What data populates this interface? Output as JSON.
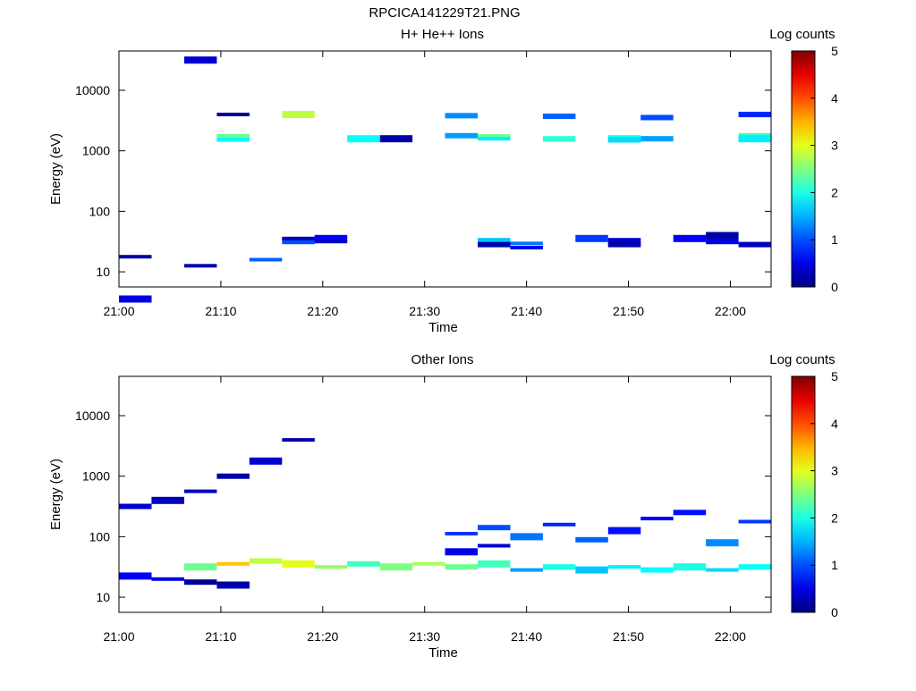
{
  "page": {
    "title": "RPCICA141229T21.PNG"
  },
  "chart_data": [
    {
      "type": "heatmap",
      "title": "H+ He++ Ions",
      "xlabel": "Time",
      "ylabel": "Energy (eV)",
      "colorbar_label": "Log counts",
      "colorbar_ticks": [
        "0",
        "1",
        "2",
        "3",
        "4",
        "5"
      ],
      "xlim_minutes": [
        0,
        64
      ],
      "x_ticks": [
        "21:00",
        "21:10",
        "21:20",
        "21:30",
        "21:40",
        "21:50",
        "22:00"
      ],
      "ylim_log10": [
        0.75,
        4.65
      ],
      "y_ticks": [
        "10",
        "100",
        "1000",
        "10000"
      ],
      "y_tick_values": [
        10,
        100,
        1000,
        10000
      ],
      "time_columns": [
        "21:00",
        "21:03",
        "21:06",
        "21:10",
        "21:13",
        "21:16",
        "21:20",
        "21:23",
        "21:26",
        "21:29",
        "21:32",
        "21:36",
        "21:39",
        "21:42",
        "21:45",
        "21:48",
        "21:52",
        "21:55",
        "21:58",
        "22:01"
      ],
      "cells": [
        [
          0,
          2,
          4.5,
          0.4
        ],
        [
          0,
          3,
          3.6,
          0.1
        ],
        [
          0,
          5,
          3.6,
          2.8
        ],
        [
          0,
          8,
          3.2,
          0.2
        ],
        [
          0,
          11,
          1.5,
          1.6
        ],
        [
          0,
          12,
          1.4,
          0.5
        ],
        [
          0,
          12,
          1.47,
          1.2
        ],
        [
          0,
          14,
          1.55,
          0.9
        ],
        [
          0,
          17,
          1.55,
          0.6
        ],
        [
          0,
          19,
          1.45,
          0.3
        ],
        [
          0,
          20,
          0.55,
          0.5
        ],
        [
          0,
          24,
          1.2,
          1.1
        ],
        [
          0,
          25,
          1.5,
          1.0
        ],
        [
          0,
          26,
          1.55,
          0.6
        ],
        [
          0,
          31,
          1.45,
          0.2
        ],
        [
          0,
          35,
          1.5,
          0.4
        ],
        [
          0,
          38,
          1.6,
          0.2
        ],
        [
          0,
          42,
          1.1,
          0.2
        ],
        [
          0,
          45,
          1.55,
          0.3
        ],
        [
          0,
          55,
          1.45,
          0.2
        ],
        [
          0,
          58,
          1.5,
          0.5
        ],
        [
          0,
          66,
          1.5,
          0.35
        ],
        [
          0,
          60,
          1.25,
          0.2
        ],
        [
          0,
          70,
          3.25,
          1.4
        ],
        [
          0,
          73,
          3.2,
          2.1
        ],
        [
          0,
          76,
          3.2,
          1.4
        ],
        [
          0,
          79,
          3.25,
          2.2
        ],
        [
          0,
          83,
          3.21,
          1.6
        ],
        [
          0,
          87,
          3.21,
          2.0
        ],
        [
          0,
          91,
          3.23,
          2.4
        ],
        [
          0,
          95,
          3.2,
          2.0
        ],
        [
          0,
          99,
          3.2,
          1.8
        ],
        [
          0,
          103,
          3.2,
          1.9
        ],
        [
          0,
          107,
          3.2,
          1.9
        ],
        [
          0,
          111,
          3.2,
          1.8
        ],
        [
          0,
          115,
          3.18,
          1.7
        ],
        [
          0,
          119,
          3.2,
          1.8
        ],
        [
          0,
          123,
          3.25,
          2.4
        ],
        [
          0,
          130,
          3.58,
          1.3
        ],
        [
          0,
          133,
          3.57,
          1.1
        ],
        [
          0,
          136,
          3.55,
          1.0
        ],
        [
          0,
          139,
          3.6,
          0.8
        ]
      ]
    },
    {
      "type": "heatmap",
      "title": "Other Ions",
      "xlabel": "Time",
      "ylabel": "Energy (eV)",
      "colorbar_label": "Log counts",
      "colorbar_ticks": [
        "0",
        "1",
        "2",
        "3",
        "4",
        "5"
      ],
      "xlim_minutes": [
        0,
        64
      ],
      "x_ticks": [
        "21:00",
        "21:10",
        "21:20",
        "21:30",
        "21:40",
        "21:50",
        "22:00"
      ],
      "ylim_log10": [
        0.75,
        4.65
      ],
      "y_ticks": [
        "10",
        "100",
        "1000",
        "10000"
      ],
      "y_tick_values": [
        10,
        100,
        1000,
        10000
      ],
      "time_columns": [
        "21:00",
        "21:03",
        "21:06",
        "21:10",
        "21:13",
        "21:16",
        "21:20",
        "21:23",
        "21:26",
        "21:29",
        "21:32",
        "21:36",
        "21:39",
        "21:42",
        "21:45",
        "21:48",
        "21:52",
        "21:55",
        "21:58",
        "22:01"
      ],
      "cells": [
        [
          1,
          2,
          1.5,
          2.4
        ],
        [
          1,
          3,
          1.55,
          3.4
        ],
        [
          1,
          4,
          1.6,
          2.8
        ],
        [
          1,
          5,
          1.55,
          3.0
        ],
        [
          1,
          6,
          1.5,
          2.6
        ],
        [
          1,
          7,
          1.55,
          2.2
        ],
        [
          1,
          8,
          1.5,
          2.5
        ],
        [
          1,
          9,
          1.55,
          2.7
        ],
        [
          1,
          10,
          1.5,
          2.4
        ],
        [
          1,
          11,
          1.55,
          2.2
        ],
        [
          1,
          12,
          1.45,
          1.4
        ],
        [
          1,
          13,
          1.5,
          2.0
        ],
        [
          1,
          14,
          1.45,
          1.6
        ],
        [
          1,
          15,
          1.5,
          1.8
        ],
        [
          1,
          16,
          1.45,
          1.9
        ],
        [
          1,
          17,
          1.5,
          2.0
        ],
        [
          1,
          18,
          1.45,
          1.7
        ],
        [
          1,
          19,
          1.5,
          1.9
        ],
        [
          1,
          20,
          1.35,
          0.6
        ],
        [
          1,
          21,
          1.3,
          0.5
        ],
        [
          1,
          22,
          1.25,
          0.1
        ],
        [
          1,
          23,
          1.2,
          0.2
        ],
        [
          1,
          30,
          2.05,
          0.9
        ],
        [
          1,
          31,
          2.15,
          1.0
        ],
        [
          1,
          32,
          2.0,
          1.2
        ],
        [
          1,
          33,
          2.2,
          0.8
        ],
        [
          1,
          34,
          1.95,
          1.1
        ],
        [
          1,
          35,
          2.1,
          0.7
        ],
        [
          1,
          36,
          2.3,
          0.6
        ],
        [
          1,
          37,
          2.4,
          0.7
        ],
        [
          1,
          38,
          1.9,
          1.3
        ],
        [
          1,
          39,
          2.25,
          0.9
        ],
        [
          1,
          40,
          2.5,
          0.4
        ],
        [
          1,
          41,
          2.6,
          0.3
        ],
        [
          1,
          42,
          2.75,
          0.3
        ],
        [
          1,
          43,
          3.0,
          0.2
        ],
        [
          1,
          44,
          3.25,
          0.4
        ],
        [
          1,
          45,
          3.6,
          0.2
        ],
        [
          1,
          50,
          1.75,
          0.5
        ],
        [
          1,
          51,
          1.85,
          0.4
        ]
      ]
    }
  ]
}
